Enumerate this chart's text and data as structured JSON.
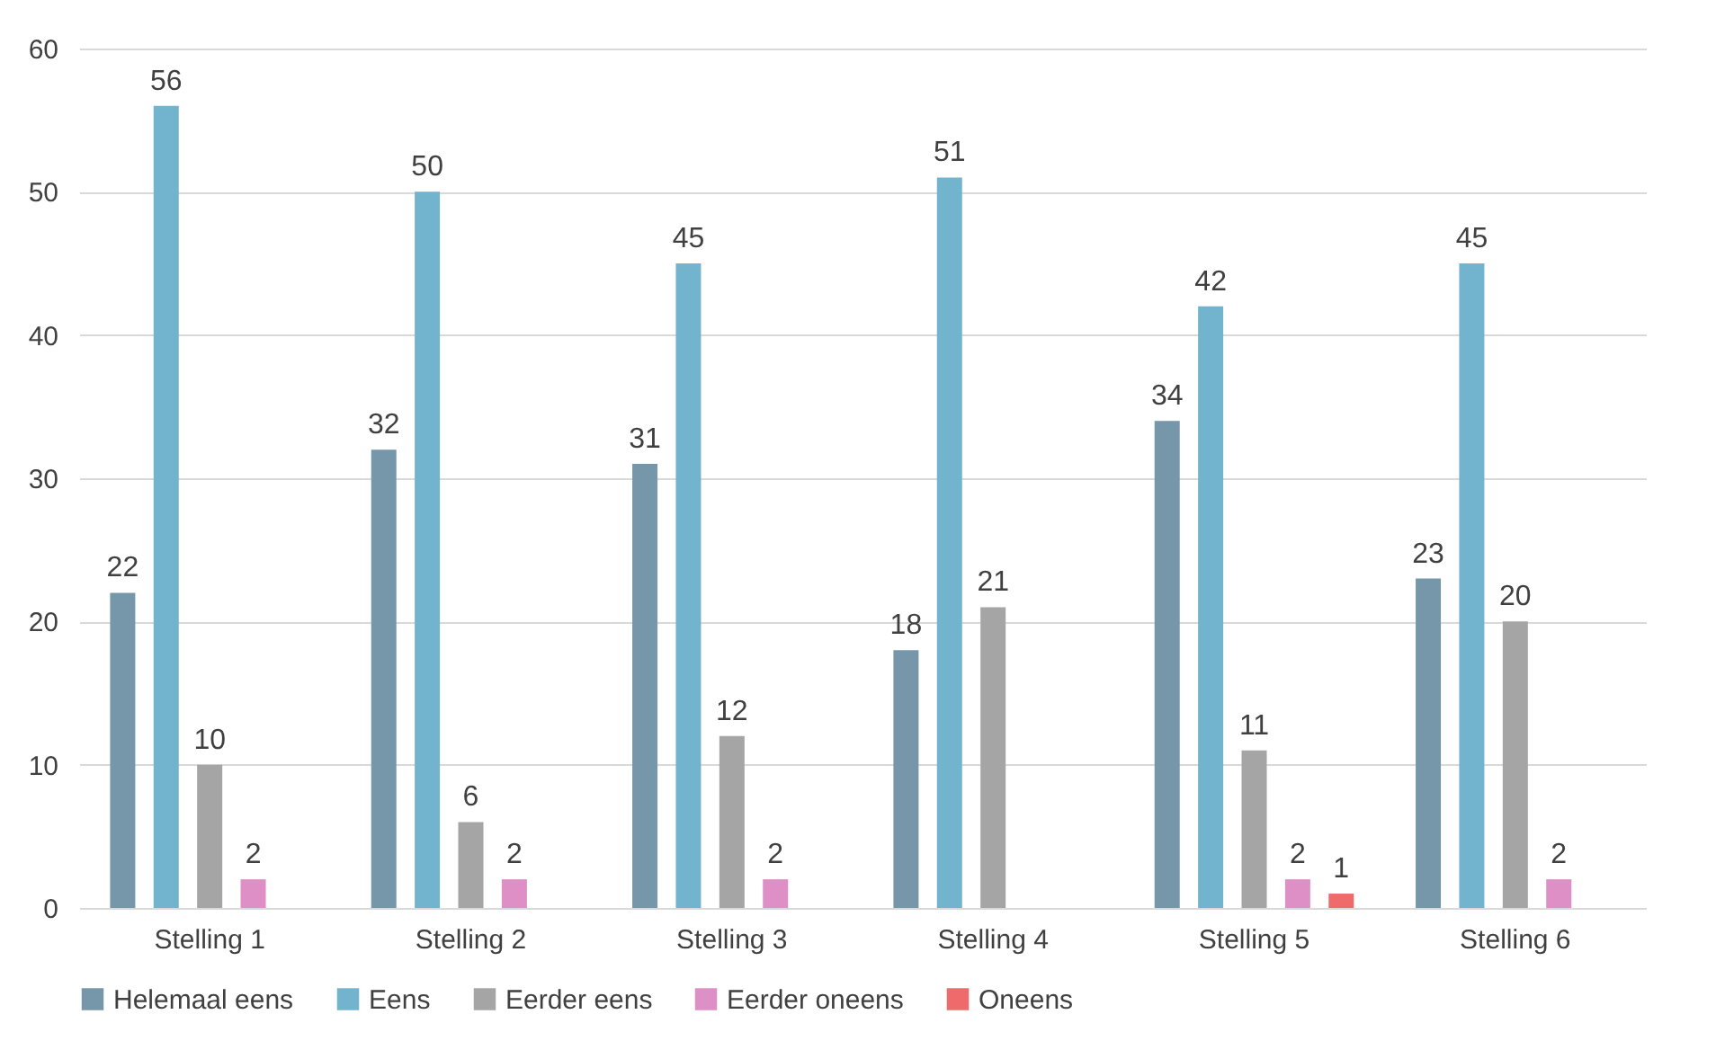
{
  "chart_data": {
    "type": "bar",
    "categories": [
      "Stelling 1",
      "Stelling 2",
      "Stelling 3",
      "Stelling 4",
      "Stelling 5",
      "Stelling 6"
    ],
    "series": [
      {
        "name": "Helemaal eens",
        "color": "#7697aa",
        "values": [
          22,
          32,
          31,
          18,
          34,
          23
        ]
      },
      {
        "name": "Eens",
        "color": "#72b4ce",
        "values": [
          56,
          50,
          45,
          51,
          42,
          45
        ]
      },
      {
        "name": "Eerder eens",
        "color": "#a5a5a5",
        "values": [
          10,
          6,
          12,
          21,
          11,
          20
        ]
      },
      {
        "name": "Eerder oneens",
        "color": "#de8fc6",
        "values": [
          2,
          2,
          2,
          null,
          2,
          2
        ]
      },
      {
        "name": "Oneens",
        "color": "#ef6a6a",
        "values": [
          null,
          null,
          null,
          null,
          1,
          null
        ]
      }
    ],
    "ylim": [
      0,
      60
    ],
    "yticks": [
      0,
      10,
      20,
      30,
      40,
      50,
      60
    ],
    "grid": "y",
    "legend": "bottom",
    "data_labels": true
  }
}
